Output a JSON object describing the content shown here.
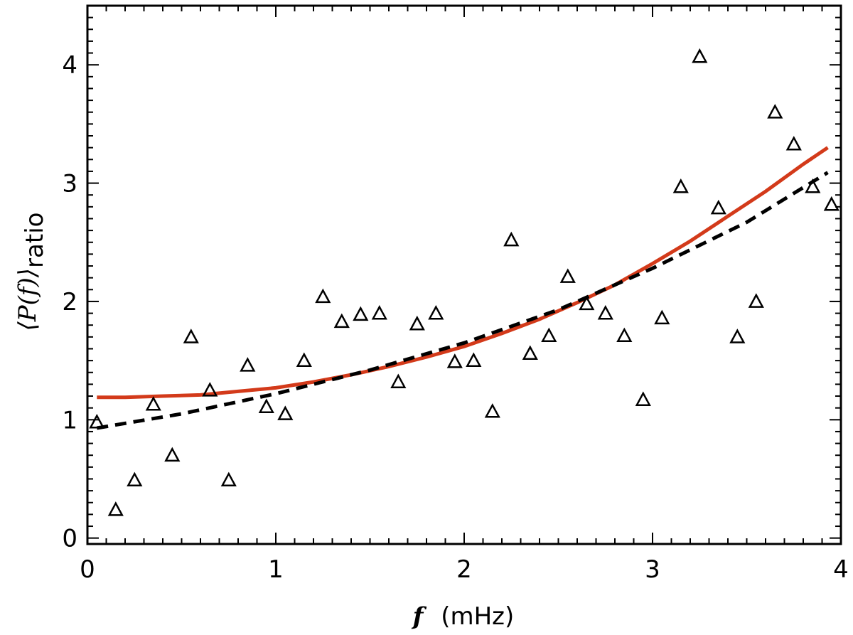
{
  "chart_data": {
    "type": "scatter",
    "title": "",
    "xlabel": {
      "var": "f",
      "unit": "(mHz)"
    },
    "ylabel": {
      "text": "⟨P(f)⟩",
      "subscript": "ratio"
    },
    "xlim": [
      0,
      4
    ],
    "ylim": [
      -0.05,
      4.5
    ],
    "xticks": [
      "0",
      "1",
      "2",
      "3",
      "4"
    ],
    "yticks": [
      "0",
      "1",
      "2",
      "3",
      "4"
    ],
    "xtick_values": [
      0,
      1,
      2,
      3,
      4
    ],
    "ytick_values": [
      0,
      1,
      2,
      3,
      4
    ],
    "grid": false,
    "series": [
      {
        "name": "data",
        "kind": "scatter",
        "marker": "triangle",
        "color": "#000000",
        "x": [
          0.05,
          0.15,
          0.25,
          0.35,
          0.45,
          0.55,
          0.65,
          0.75,
          0.85,
          0.95,
          1.05,
          1.15,
          1.25,
          1.35,
          1.45,
          1.55,
          1.65,
          1.75,
          1.85,
          1.95,
          2.05,
          2.15,
          2.25,
          2.35,
          2.45,
          2.55,
          2.65,
          2.75,
          2.85,
          2.95,
          3.05,
          3.15,
          3.25,
          3.35,
          3.45,
          3.55,
          3.65,
          3.75,
          3.85,
          3.95
        ],
        "y": [
          0.98,
          0.24,
          0.49,
          1.13,
          0.7,
          1.7,
          1.25,
          0.49,
          1.46,
          1.11,
          1.05,
          1.5,
          2.04,
          1.83,
          1.89,
          1.9,
          1.32,
          1.81,
          1.9,
          1.49,
          1.5,
          1.07,
          2.52,
          1.56,
          1.71,
          2.21,
          1.98,
          1.9,
          1.71,
          1.17,
          1.86,
          2.97,
          4.07,
          2.79,
          1.7,
          2.0,
          3.6,
          3.33,
          2.97,
          2.82
        ]
      },
      {
        "name": "fit-solid",
        "kind": "line",
        "style": "solid",
        "color": "#d33a1a",
        "x": [
          0.05,
          0.2,
          0.4,
          0.6,
          0.8,
          1.0,
          1.2,
          1.4,
          1.6,
          1.8,
          2.0,
          2.2,
          2.4,
          2.6,
          2.8,
          3.0,
          3.2,
          3.4,
          3.6,
          3.8,
          3.93
        ],
        "y": [
          1.19,
          1.19,
          1.2,
          1.21,
          1.24,
          1.27,
          1.32,
          1.38,
          1.45,
          1.53,
          1.62,
          1.73,
          1.85,
          1.99,
          2.14,
          2.32,
          2.51,
          2.72,
          2.93,
          3.16,
          3.3
        ]
      },
      {
        "name": "fit-dashed",
        "kind": "line",
        "style": "dashed",
        "color": "#000000",
        "x": [
          0.05,
          0.5,
          1.0,
          1.5,
          2.0,
          2.5,
          3.0,
          3.5,
          3.93
        ],
        "y": [
          0.93,
          1.05,
          1.22,
          1.42,
          1.65,
          1.93,
          2.28,
          2.67,
          3.09
        ]
      }
    ]
  }
}
